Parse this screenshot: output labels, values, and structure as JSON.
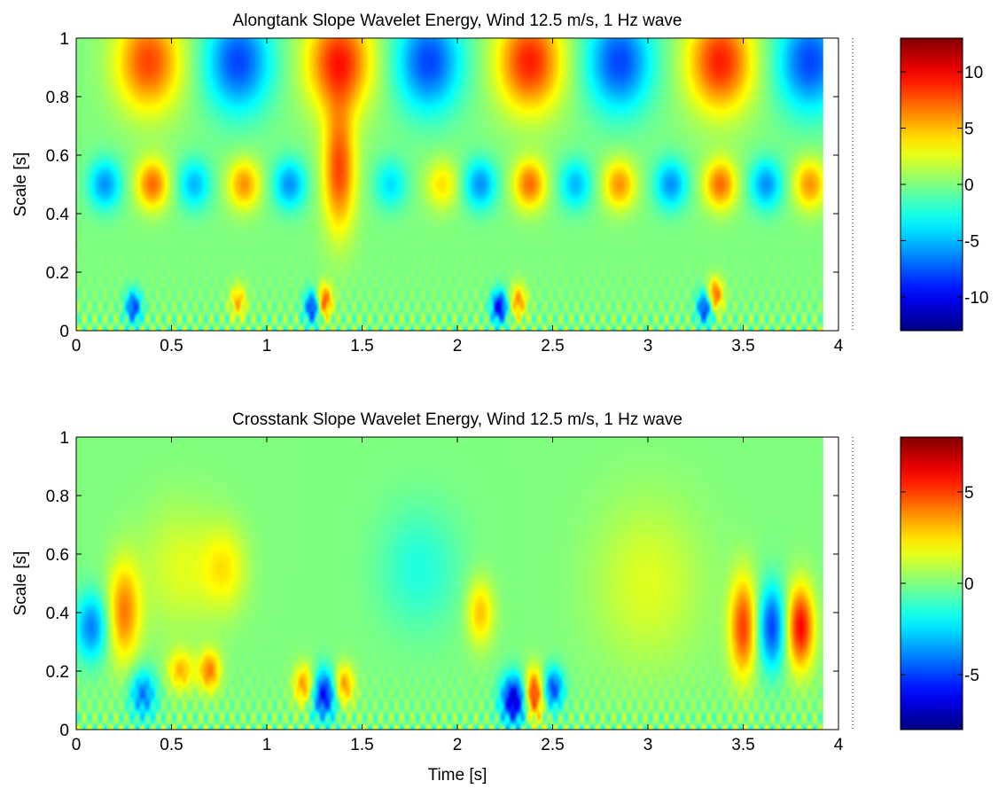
{
  "chart_data": [
    {
      "type": "heatmap",
      "title": "Alongtank Slope Wavelet Energy, Wind 12.5 m/s, 1 Hz wave",
      "xlabel": "",
      "ylabel": "Scale [s]",
      "xlim": [
        0,
        4
      ],
      "ylim": [
        0,
        1
      ],
      "data_x_max": 3.92,
      "xticks": [
        "0",
        "0.5",
        "1",
        "1.5",
        "2",
        "2.5",
        "3",
        "3.5",
        "4"
      ],
      "yticks": [
        "0",
        "0.2",
        "0.4",
        "0.6",
        "0.8",
        "1"
      ],
      "colorbar": {
        "range": [
          -13,
          13
        ],
        "ticks": [
          "10",
          "5",
          "0",
          "-5",
          "-10"
        ],
        "tick_values": [
          10,
          5,
          0,
          -5,
          -10
        ]
      },
      "colormap": "jet",
      "blobs": [
        {
          "t": 0.38,
          "s": 0.92,
          "amp": 8,
          "wt": 0.12,
          "ws": 0.12
        },
        {
          "t": 0.85,
          "s": 0.92,
          "amp": -8,
          "wt": 0.12,
          "ws": 0.12
        },
        {
          "t": 1.38,
          "s": 0.92,
          "amp": 9,
          "wt": 0.12,
          "ws": 0.12
        },
        {
          "t": 1.85,
          "s": 0.92,
          "amp": -8,
          "wt": 0.12,
          "ws": 0.12
        },
        {
          "t": 2.38,
          "s": 0.92,
          "amp": 9,
          "wt": 0.12,
          "ws": 0.12
        },
        {
          "t": 2.85,
          "s": 0.92,
          "amp": -8,
          "wt": 0.12,
          "ws": 0.12
        },
        {
          "t": 3.38,
          "s": 0.92,
          "amp": 9,
          "wt": 0.12,
          "ws": 0.12
        },
        {
          "t": 3.85,
          "s": 0.92,
          "amp": -8,
          "wt": 0.12,
          "ws": 0.12
        },
        {
          "t": 0.15,
          "s": 0.5,
          "amp": -6,
          "wt": 0.06,
          "ws": 0.06
        },
        {
          "t": 0.4,
          "s": 0.5,
          "amp": 7,
          "wt": 0.06,
          "ws": 0.06
        },
        {
          "t": 0.62,
          "s": 0.5,
          "amp": -5,
          "wt": 0.06,
          "ws": 0.06
        },
        {
          "t": 0.88,
          "s": 0.5,
          "amp": 6,
          "wt": 0.06,
          "ws": 0.06
        },
        {
          "t": 1.12,
          "s": 0.5,
          "amp": -6,
          "wt": 0.06,
          "ws": 0.06
        },
        {
          "t": 1.38,
          "s": 0.55,
          "amp": 8,
          "wt": 0.06,
          "ws": 0.15
        },
        {
          "t": 1.65,
          "s": 0.5,
          "amp": -4,
          "wt": 0.06,
          "ws": 0.06
        },
        {
          "t": 1.92,
          "s": 0.5,
          "amp": 4,
          "wt": 0.06,
          "ws": 0.06
        },
        {
          "t": 2.12,
          "s": 0.5,
          "amp": -6,
          "wt": 0.06,
          "ws": 0.06
        },
        {
          "t": 2.38,
          "s": 0.5,
          "amp": 7,
          "wt": 0.06,
          "ws": 0.06
        },
        {
          "t": 2.62,
          "s": 0.5,
          "amp": -5,
          "wt": 0.06,
          "ws": 0.06
        },
        {
          "t": 2.85,
          "s": 0.5,
          "amp": 6,
          "wt": 0.06,
          "ws": 0.06
        },
        {
          "t": 3.12,
          "s": 0.5,
          "amp": -6,
          "wt": 0.06,
          "ws": 0.06
        },
        {
          "t": 3.38,
          "s": 0.5,
          "amp": 7,
          "wt": 0.06,
          "ws": 0.06
        },
        {
          "t": 3.62,
          "s": 0.5,
          "amp": -6,
          "wt": 0.06,
          "ws": 0.06
        },
        {
          "t": 3.85,
          "s": 0.5,
          "amp": 6,
          "wt": 0.06,
          "ws": 0.06
        },
        {
          "t": 1.3,
          "s": 0.1,
          "amp": 8,
          "wt": 0.03,
          "ws": 0.04
        },
        {
          "t": 1.24,
          "s": 0.08,
          "amp": -9,
          "wt": 0.03,
          "ws": 0.04
        },
        {
          "t": 2.22,
          "s": 0.08,
          "amp": -10,
          "wt": 0.03,
          "ws": 0.04
        },
        {
          "t": 2.32,
          "s": 0.1,
          "amp": 6,
          "wt": 0.03,
          "ws": 0.04
        },
        {
          "t": 3.3,
          "s": 0.08,
          "amp": -9,
          "wt": 0.03,
          "ws": 0.04
        },
        {
          "t": 3.35,
          "s": 0.12,
          "amp": 8,
          "wt": 0.03,
          "ws": 0.04
        },
        {
          "t": 0.3,
          "s": 0.08,
          "amp": -8,
          "wt": 0.03,
          "ws": 0.04
        },
        {
          "t": 0.85,
          "s": 0.1,
          "amp": 5,
          "wt": 0.03,
          "ws": 0.04
        }
      ],
      "ripple": {
        "amp": 4,
        "freq": 18,
        "scale_decay": 0.08
      }
    },
    {
      "type": "heatmap",
      "title": "Crosstank Slope Wavelet Energy, Wind 12.5 m/s, 1 Hz wave",
      "xlabel": "Time [s]",
      "ylabel": "Scale [s]",
      "xlim": [
        0,
        4
      ],
      "ylim": [
        0,
        1
      ],
      "data_x_max": 3.92,
      "xticks": [
        "0",
        "0.5",
        "1",
        "1.5",
        "2",
        "2.5",
        "3",
        "3.5",
        "4"
      ],
      "yticks": [
        "0",
        "0.2",
        "0.4",
        "0.6",
        "0.8",
        "1"
      ],
      "colorbar": {
        "range": [
          -8,
          8
        ],
        "ticks": [
          "5",
          "0",
          "-5"
        ],
        "tick_values": [
          5,
          0,
          -5
        ]
      },
      "colormap": "jet",
      "blobs": [
        {
          "t": 0.08,
          "s": 0.35,
          "amp": -4,
          "wt": 0.06,
          "ws": 0.08
        },
        {
          "t": 0.25,
          "s": 0.4,
          "amp": 4,
          "wt": 0.06,
          "ws": 0.12
        },
        {
          "t": 0.35,
          "s": 0.12,
          "amp": -4,
          "wt": 0.05,
          "ws": 0.06
        },
        {
          "t": 0.55,
          "s": 0.2,
          "amp": 3,
          "wt": 0.05,
          "ws": 0.05
        },
        {
          "t": 0.7,
          "s": 0.2,
          "amp": 4,
          "wt": 0.04,
          "ws": 0.05
        },
        {
          "t": 0.55,
          "s": 0.55,
          "amp": 1.5,
          "wt": 0.15,
          "ws": 0.15
        },
        {
          "t": 0.78,
          "s": 0.55,
          "amp": 2,
          "wt": 0.08,
          "ws": 0.1
        },
        {
          "t": 1.3,
          "s": 0.12,
          "amp": -6,
          "wt": 0.05,
          "ws": 0.06
        },
        {
          "t": 1.2,
          "s": 0.15,
          "amp": 4,
          "wt": 0.04,
          "ws": 0.05
        },
        {
          "t": 1.4,
          "s": 0.15,
          "amp": 4,
          "wt": 0.04,
          "ws": 0.05
        },
        {
          "t": 2.3,
          "s": 0.1,
          "amp": -7,
          "wt": 0.05,
          "ws": 0.06
        },
        {
          "t": 2.4,
          "s": 0.12,
          "amp": 6,
          "wt": 0.04,
          "ws": 0.06
        },
        {
          "t": 2.5,
          "s": 0.14,
          "amp": -5,
          "wt": 0.04,
          "ws": 0.05
        },
        {
          "t": 2.12,
          "s": 0.4,
          "amp": 3,
          "wt": 0.05,
          "ws": 0.08
        },
        {
          "t": 3.5,
          "s": 0.35,
          "amp": 5,
          "wt": 0.05,
          "ws": 0.12
        },
        {
          "t": 3.65,
          "s": 0.35,
          "amp": -5,
          "wt": 0.05,
          "ws": 0.1
        },
        {
          "t": 3.8,
          "s": 0.35,
          "amp": 6,
          "wt": 0.05,
          "ws": 0.1
        },
        {
          "t": 1.8,
          "s": 0.55,
          "amp": -1.5,
          "wt": 0.15,
          "ws": 0.15
        },
        {
          "t": 3.0,
          "s": 0.5,
          "amp": 1.5,
          "wt": 0.2,
          "ws": 0.2
        }
      ],
      "ripple": {
        "amp": 2.5,
        "freq": 18,
        "scale_decay": 0.08
      }
    }
  ]
}
